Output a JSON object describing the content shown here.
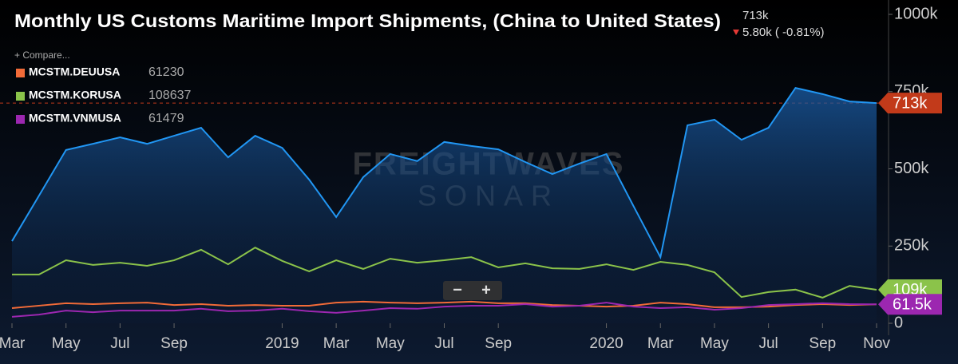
{
  "chart_data": {
    "type": "line",
    "title": "Monthly US Customs Maritime Import Shipments, (China to United States)",
    "header_value": "713k",
    "header_change": "5.80k ( -0.81%)",
    "compare": "+ Compare...",
    "watermark": [
      "FREIGHTWAVES",
      "SONAR"
    ],
    "zoom": [
      "−",
      "+"
    ],
    "categories": [
      "Mar",
      null,
      "May",
      null,
      "Jul",
      null,
      "Sep",
      null,
      null,
      null,
      "2019",
      null,
      "Mar",
      null,
      "May",
      null,
      "Jul",
      null,
      "Sep",
      null,
      null,
      null,
      "2020",
      null,
      "Mar",
      null,
      "May",
      null,
      "Jul",
      null,
      "Sep",
      null,
      "Nov"
    ],
    "ylim": [
      0,
      1000000
    ],
    "yticks": [
      {
        "value": 0,
        "label": "0"
      },
      {
        "value": 250000,
        "label": "250k"
      },
      {
        "value": 500000,
        "label": "500k"
      },
      {
        "value": 750000,
        "label": "750k"
      },
      {
        "value": 1000000,
        "label": "1000k"
      }
    ],
    "series": [
      {
        "color": "#2196f3",
        "area": true,
        "end_label": "713k",
        "end_color": "#c23a1a",
        "values": [
          266000,
          413000,
          561000,
          581000,
          602000,
          581000,
          607000,
          633000,
          537000,
          607000,
          568000,
          465000,
          344000,
          473000,
          548000,
          525000,
          587000,
          574000,
          563000,
          522000,
          483000,
          517000,
          548000,
          380000,
          214000,
          641000,
          659000,
          594000,
          633000,
          762000,
          742000,
          718000,
          713000
        ]
      },
      {
        "name": "MCSTM.DEUUSA",
        "legend_value": 61230,
        "color": "#f26b38",
        "values": [
          49000,
          57000,
          65000,
          62000,
          65000,
          67000,
          59000,
          62000,
          57000,
          59000,
          57000,
          57000,
          67000,
          70000,
          67000,
          65000,
          67000,
          70000,
          65000,
          65000,
          59000,
          57000,
          54000,
          57000,
          67000,
          62000,
          52000,
          52000,
          54000,
          59000,
          62000,
          59000,
          61230
        ]
      },
      {
        "name": "MCSTM.KORUSA",
        "legend_value": 108637,
        "color": "#8bc34a",
        "end_label": "109k",
        "end_color": "#8bc34a",
        "values": [
          158000,
          158000,
          204000,
          189000,
          196000,
          186000,
          204000,
          238000,
          191000,
          245000,
          202000,
          168000,
          204000,
          176000,
          209000,
          196000,
          204000,
          214000,
          181000,
          194000,
          178000,
          176000,
          191000,
          173000,
          199000,
          189000,
          165000,
          85000,
          101000,
          109000,
          83000,
          121000,
          108637
        ]
      },
      {
        "name": "MCSTM.VNMUSA",
        "legend_value": 61479,
        "color": "#9c27b0",
        "end_label": "61.5k",
        "end_color": "#9c27b0",
        "values": [
          21000,
          28000,
          41000,
          36000,
          41000,
          41000,
          41000,
          47000,
          39000,
          41000,
          47000,
          39000,
          34000,
          41000,
          49000,
          47000,
          54000,
          57000,
          57000,
          62000,
          54000,
          57000,
          67000,
          54000,
          49000,
          52000,
          44000,
          49000,
          59000,
          62000,
          65000,
          62000,
          61479
        ]
      }
    ],
    "ref_line": {
      "value": 713000,
      "color": "#c23a1a"
    }
  }
}
